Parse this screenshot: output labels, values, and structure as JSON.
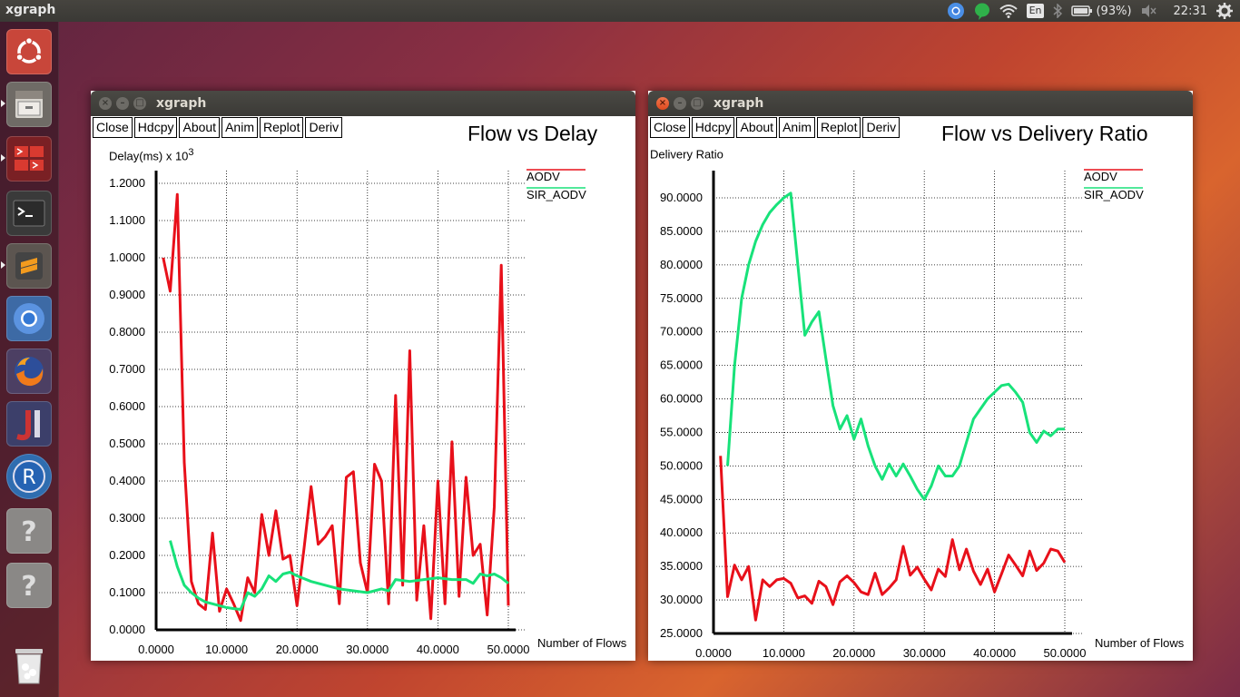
{
  "topbar": {
    "title": "xgraph",
    "keyboard": "En",
    "battery": "(93%)",
    "clock": "22:31"
  },
  "launcher": {
    "items": [
      {
        "name": "ubuntu-dash",
        "icon": "ubuntu-logo-icon"
      },
      {
        "name": "files",
        "icon": "file-cabinet-icon"
      },
      {
        "name": "workspaces",
        "icon": "workspace-switcher-icon"
      },
      {
        "name": "terminal",
        "icon": "terminal-icon"
      },
      {
        "name": "sublime-text",
        "icon": "sublime-text-icon"
      },
      {
        "name": "chromium",
        "icon": "chromium-icon"
      },
      {
        "name": "firefox",
        "icon": "firefox-icon"
      },
      {
        "name": "jabref",
        "icon": "jabref-icon"
      },
      {
        "name": "r",
        "icon": "r-logo-icon"
      },
      {
        "name": "unknown-app-1",
        "icon": "question-mark-icon"
      },
      {
        "name": "unknown-app-2",
        "icon": "question-mark-icon"
      },
      {
        "name": "trash",
        "icon": "trash-icon"
      }
    ]
  },
  "windows": [
    {
      "title": "xgraph",
      "buttons": [
        "Close",
        "Hdcpy",
        "About",
        "Anim",
        "Replot",
        "Deriv"
      ],
      "graph_title": "Flow vs Delay",
      "ylabel_main": "Delay(ms) x 10",
      "ylabel_sup": "3",
      "xlabel": "Number of Flows"
    },
    {
      "title": "xgraph",
      "buttons": [
        "Close",
        "Hdcpy",
        "About",
        "Anim",
        "Replot",
        "Deriv"
      ],
      "graph_title": "Flow vs Delivery Ratio",
      "ylabel_main": "Delivery Ratio",
      "ylabel_sup": "",
      "xlabel": "Number of Flows"
    }
  ],
  "chart_data": [
    {
      "type": "line",
      "title": "Flow vs Delay",
      "xlabel": "Number of Flows",
      "ylabel": "Delay(ms) x 10^3",
      "xlim": [
        0,
        50
      ],
      "ylim": [
        0,
        1.2
      ],
      "xticks": [
        "0.0000",
        "10.0000",
        "20.0000",
        "30.0000",
        "40.0000",
        "50.0000"
      ],
      "yticks": [
        "0.0000",
        "0.1000",
        "0.2000",
        "0.3000",
        "0.4000",
        "0.5000",
        "0.6000",
        "0.7000",
        "0.8000",
        "0.9000",
        "1.0000",
        "1.1000",
        "1.2000"
      ],
      "grid": true,
      "legend_position": "top-right",
      "series": [
        {
          "name": "AODV",
          "color": "#e8101a",
          "x": [
            1,
            2,
            3,
            4,
            5,
            6,
            7,
            8,
            9,
            10,
            11,
            12,
            13,
            14,
            15,
            16,
            17,
            18,
            19,
            20,
            21,
            22,
            23,
            24,
            25,
            26,
            27,
            28,
            29,
            30,
            31,
            32,
            33,
            34,
            35,
            36,
            37,
            38,
            39,
            40,
            41,
            42,
            43,
            44,
            45,
            46,
            47,
            48,
            49,
            50
          ],
          "y": [
            1.0,
            0.91,
            1.17,
            0.45,
            0.13,
            0.07,
            0.055,
            0.26,
            0.05,
            0.11,
            0.07,
            0.025,
            0.14,
            0.1,
            0.31,
            0.2,
            0.32,
            0.19,
            0.2,
            0.065,
            0.22,
            0.385,
            0.23,
            0.25,
            0.28,
            0.07,
            0.41,
            0.425,
            0.18,
            0.1,
            0.445,
            0.4,
            0.07,
            0.63,
            0.12,
            0.75,
            0.08,
            0.28,
            0.03,
            0.4,
            0.07,
            0.505,
            0.09,
            0.41,
            0.2,
            0.23,
            0.04,
            0.33,
            0.98,
            0.065
          ]
        },
        {
          "name": "SIR_AODV",
          "color": "#18e27a",
          "x": [
            2,
            3,
            4,
            5,
            6,
            7,
            8,
            9,
            10,
            11,
            12,
            13,
            14,
            15,
            16,
            17,
            18,
            19,
            20,
            22,
            24,
            26,
            28,
            30,
            32,
            33,
            34,
            36,
            38,
            40,
            42,
            44,
            45,
            46,
            47,
            48,
            49,
            50
          ],
          "y": [
            0.24,
            0.17,
            0.12,
            0.1,
            0.085,
            0.075,
            0.07,
            0.065,
            0.06,
            0.057,
            0.055,
            0.1,
            0.09,
            0.11,
            0.145,
            0.13,
            0.15,
            0.155,
            0.145,
            0.13,
            0.12,
            0.11,
            0.105,
            0.1,
            0.11,
            0.105,
            0.135,
            0.13,
            0.135,
            0.14,
            0.135,
            0.135,
            0.125,
            0.15,
            0.145,
            0.15,
            0.14,
            0.125
          ]
        }
      ]
    },
    {
      "type": "line",
      "title": "Flow vs Delivery Ratio",
      "xlabel": "Number of Flows",
      "ylabel": "Delivery Ratio",
      "xlim": [
        0,
        50
      ],
      "ylim": [
        25,
        90
      ],
      "xticks": [
        "0.0000",
        "10.0000",
        "20.0000",
        "30.0000",
        "40.0000",
        "50.0000"
      ],
      "yticks": [
        "25.0000",
        "30.0000",
        "35.0000",
        "40.0000",
        "45.0000",
        "50.0000",
        "55.0000",
        "60.0000",
        "65.0000",
        "70.0000",
        "75.0000",
        "80.0000",
        "85.0000",
        "90.0000"
      ],
      "grid": true,
      "legend_position": "top-right",
      "series": [
        {
          "name": "AODV",
          "color": "#e8101a",
          "x": [
            1,
            2,
            3,
            4,
            5,
            6,
            7,
            8,
            9,
            10,
            11,
            12,
            13,
            14,
            15,
            16,
            17,
            18,
            19,
            20,
            21,
            22,
            23,
            24,
            25,
            26,
            27,
            28,
            29,
            30,
            31,
            32,
            33,
            34,
            35,
            36,
            37,
            38,
            39,
            40,
            41,
            42,
            43,
            44,
            45,
            46,
            47,
            48,
            49,
            50
          ],
          "y": [
            51.5,
            30.5,
            35.2,
            33.0,
            35.0,
            27.0,
            33.0,
            32.0,
            33.0,
            33.2,
            32.5,
            30.3,
            30.6,
            29.5,
            32.8,
            32.0,
            29.3,
            32.7,
            33.6,
            32.6,
            31.2,
            30.8,
            34.0,
            30.8,
            31.8,
            33.0,
            38.0,
            33.7,
            34.9,
            33.1,
            31.5,
            34.6,
            33.5,
            39.0,
            34.5,
            37.6,
            34.3,
            32.3,
            34.6,
            31.2,
            33.9,
            36.7,
            35.2,
            33.6,
            37.3,
            34.4,
            35.5,
            37.6,
            37.3,
            35.6
          ]
        },
        {
          "name": "SIR_AODV",
          "color": "#18e27a",
          "x": [
            2,
            3,
            4,
            5,
            6,
            7,
            8,
            9,
            10,
            11,
            12,
            13,
            14,
            15,
            16,
            17,
            18,
            19,
            20,
            21,
            22,
            23,
            24,
            25,
            26,
            27,
            28,
            29,
            30,
            31,
            32,
            33,
            34,
            35,
            36,
            37,
            38,
            39,
            40,
            41,
            42,
            43,
            44,
            45,
            46,
            47,
            48,
            49,
            50
          ],
          "y": [
            50.0,
            65.0,
            75.0,
            80.0,
            83.5,
            86.0,
            87.8,
            89.0,
            90.0,
            90.7,
            80.0,
            69.5,
            71.5,
            73.0,
            66.0,
            59.0,
            55.5,
            57.5,
            54.0,
            57.0,
            53.0,
            50.0,
            48.0,
            50.3,
            48.5,
            50.3,
            48.5,
            46.5,
            45.0,
            47.0,
            50.0,
            48.5,
            48.5,
            50.0,
            53.5,
            57.0,
            58.5,
            60.0,
            61.0,
            62.0,
            62.2,
            61.0,
            59.5,
            55.0,
            53.5,
            55.2,
            54.5,
            55.5,
            55.5
          ]
        }
      ]
    }
  ]
}
